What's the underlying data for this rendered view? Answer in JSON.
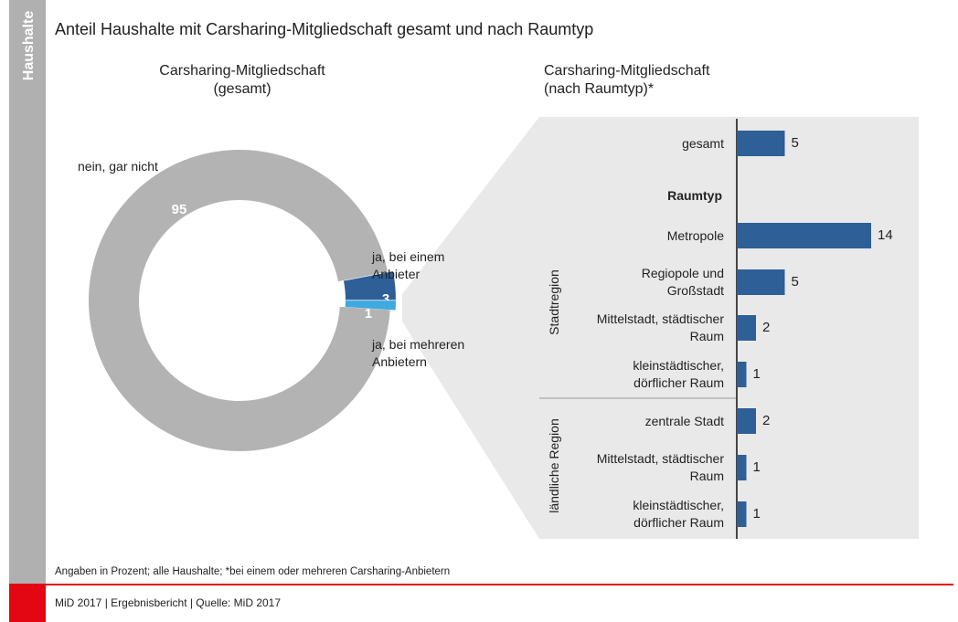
{
  "sidebar": "Haushalte",
  "title": "Anteil Haushalte mit Carsharing-Mitgliedschaft gesamt und nach Raumtyp",
  "note": "Angaben in Prozent; alle Haushalte; *bei einem oder mehreren Carsharing-Anbietern",
  "footer": "MiD 2017 | Ergebnisbericht | Quelle: MiD 2017",
  "chart_data": [
    {
      "type": "pie",
      "title": "Carsharing-Mitgliedschaft (gesamt)",
      "categories": [
        "nein, gar nicht",
        "ja, bei einem Anbieter",
        "ja, bei mehreren Anbietern"
      ],
      "values": [
        95,
        3,
        1
      ],
      "colors": [
        "#b3b3b3",
        "#2e5f97",
        "#3fa9e0"
      ]
    },
    {
      "type": "bar",
      "title": "Carsharing-Mitgliedschaft (nach Raumtyp)*",
      "subheading": "Raumtyp",
      "groups": [
        "Stadtregion",
        "ländliche Region"
      ],
      "categories": [
        "gesamt",
        "Metropole",
        "Regiopole und Großstadt",
        "Mittelstadt, städtischer Raum",
        "kleinstädtischer, dörflicher Raum",
        "zentrale Stadt",
        "Mittelstadt, städtischer Raum",
        "kleinstädtischer, dörflicher Raum"
      ],
      "values": [
        5,
        14,
        5,
        2,
        1,
        2,
        1,
        1
      ],
      "color": "#2e5f97"
    }
  ]
}
